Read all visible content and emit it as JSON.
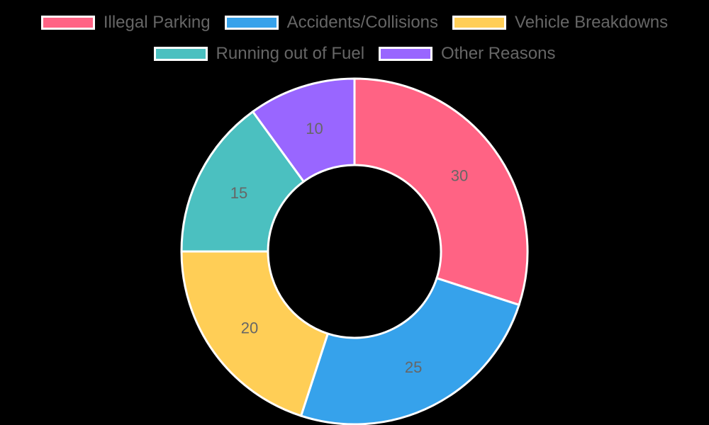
{
  "chart_data": {
    "type": "doughnut",
    "title": "",
    "categories": [
      "Illegal Parking",
      "Accidents/Collisions",
      "Vehicle Breakdowns",
      "Running out of Fuel",
      "Other Reasons"
    ],
    "values": [
      30,
      25,
      20,
      15,
      10
    ],
    "colors": [
      "#FF6384",
      "#36A2EB",
      "#FFCE56",
      "#4BC0C0",
      "#9966FF"
    ],
    "data_labels": [
      "30",
      "25",
      "20",
      "15",
      "10"
    ],
    "legend_position": "top",
    "border_color": "#ffffff",
    "background": "#000000"
  },
  "legend": {
    "items": [
      {
        "label": "Illegal Parking",
        "color": "#FF6384"
      },
      {
        "label": "Accidents/Collisions",
        "color": "#36A2EB"
      },
      {
        "label": "Vehicle Breakdowns",
        "color": "#FFCE56"
      },
      {
        "label": "Running out of Fuel",
        "color": "#4BC0C0"
      },
      {
        "label": "Other Reasons",
        "color": "#9966FF"
      }
    ]
  }
}
